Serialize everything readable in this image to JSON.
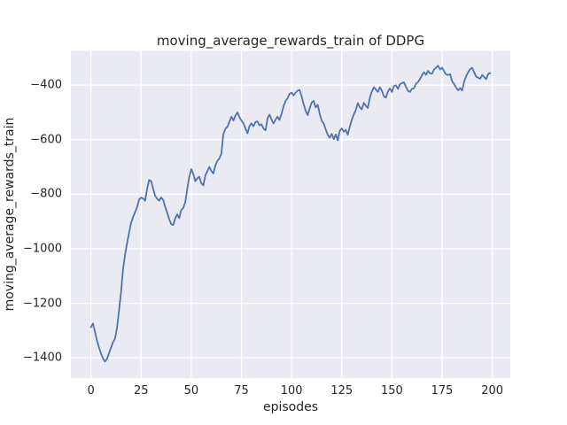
{
  "figure": {
    "title": "moving_average_rewards_train of DDPG",
    "xlabel": "episodes",
    "ylabel": "moving_average_rewards_train"
  },
  "colors": {
    "line": "#4c72b0",
    "plot_background": "#eaeaf2",
    "grid": "#ffffff",
    "text": "#262626",
    "figure_background": "#ffffff"
  },
  "chart_data": {
    "type": "line",
    "title": "moving_average_rewards_train of DDPG",
    "xlabel": "episodes",
    "ylabel": "moving_average_rewards_train",
    "grid": true,
    "legend": false,
    "background": "#eaeaf2",
    "grid_color": "#ffffff",
    "xlim": [
      -10,
      209
    ],
    "ylim": [
      -1475,
      -275
    ],
    "xticks": [
      0,
      25,
      50,
      75,
      100,
      125,
      150,
      175,
      200
    ],
    "yticks": [
      -400,
      -600,
      -800,
      -1000,
      -1200,
      -1400
    ],
    "xtick_labels": [
      "0",
      "25",
      "50",
      "75",
      "100",
      "125",
      "150",
      "175",
      "200"
    ],
    "ytick_labels": [
      "−400",
      "−600",
      "−800",
      "−1000",
      "−1200",
      "−1400"
    ],
    "x_start": 0,
    "x_step": 1,
    "series": [
      {
        "name": "moving_average_rewards_train",
        "color": "#4c72b0",
        "values": [
          -1288,
          -1274,
          -1305,
          -1336,
          -1362,
          -1384,
          -1402,
          -1414,
          -1404,
          -1383,
          -1363,
          -1343,
          -1330,
          -1290,
          -1225,
          -1160,
          -1075,
          -1022,
          -980,
          -942,
          -906,
          -884,
          -866,
          -848,
          -820,
          -812,
          -816,
          -824,
          -780,
          -748,
          -752,
          -781,
          -806,
          -817,
          -824,
          -812,
          -821,
          -846,
          -868,
          -892,
          -910,
          -913,
          -889,
          -874,
          -888,
          -858,
          -851,
          -830,
          -780,
          -737,
          -708,
          -726,
          -753,
          -742,
          -736,
          -760,
          -768,
          -733,
          -716,
          -700,
          -715,
          -724,
          -695,
          -678,
          -669,
          -652,
          -580,
          -560,
          -553,
          -535,
          -516,
          -530,
          -512,
          -500,
          -517,
          -530,
          -540,
          -558,
          -577,
          -551,
          -540,
          -551,
          -535,
          -533,
          -548,
          -544,
          -559,
          -566,
          -522,
          -508,
          -526,
          -541,
          -527,
          -516,
          -528,
          -505,
          -478,
          -458,
          -448,
          -432,
          -428,
          -438,
          -428,
          -420,
          -418,
          -442,
          -470,
          -494,
          -510,
          -486,
          -464,
          -458,
          -482,
          -472,
          -505,
          -531,
          -541,
          -562,
          -582,
          -593,
          -579,
          -598,
          -581,
          -603,
          -568,
          -559,
          -571,
          -564,
          -582,
          -553,
          -527,
          -508,
          -492,
          -466,
          -481,
          -489,
          -465,
          -476,
          -484,
          -446,
          -424,
          -408,
          -416,
          -425,
          -408,
          -421,
          -441,
          -446,
          -424,
          -412,
          -425,
          -404,
          -401,
          -414,
          -397,
          -393,
          -390,
          -406,
          -421,
          -425,
          -414,
          -412,
          -394,
          -389,
          -378,
          -364,
          -353,
          -362,
          -348,
          -357,
          -358,
          -343,
          -336,
          -329,
          -343,
          -336,
          -349,
          -361,
          -363,
          -360,
          -386,
          -396,
          -409,
          -419,
          -411,
          -420,
          -387,
          -368,
          -353,
          -341,
          -337,
          -353,
          -369,
          -373,
          -377,
          -363,
          -371,
          -378,
          -359,
          -356
        ]
      }
    ]
  }
}
